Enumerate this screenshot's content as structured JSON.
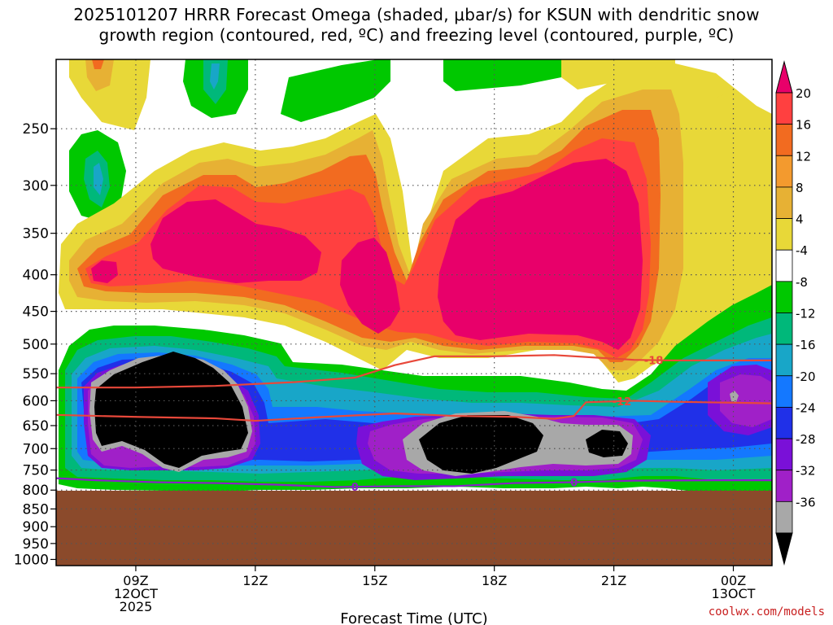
{
  "title": {
    "line1": "2025101207 HRRR Forecast Omega (shaded, μbar/s) for KSUN with dendritic snow",
    "line2": "growth region (contoured, red, ºC) and freezing level (contoured, purple, ºC)"
  },
  "credit": "coolwx.com/models",
  "chart_data": {
    "type": "heatmap",
    "xlabel": "Forecast Time (UTC)",
    "ylabel": "",
    "x_ticks": [
      {
        "t": 9,
        "lines": [
          "09Z",
          "12OCT",
          "2025"
        ]
      },
      {
        "t": 12,
        "lines": [
          "12Z"
        ]
      },
      {
        "t": 15,
        "lines": [
          "15Z"
        ]
      },
      {
        "t": 18,
        "lines": [
          "18Z"
        ]
      },
      {
        "t": 21,
        "lines": [
          "21Z"
        ]
      },
      {
        "t": 24,
        "lines": [
          "00Z",
          "13OCT"
        ]
      }
    ],
    "x_range_hours": [
      7.0,
      24.97
    ],
    "y_ticks": [
      250,
      300,
      350,
      400,
      450,
      500,
      550,
      600,
      650,
      700,
      750,
      800,
      850,
      900,
      950,
      1000
    ],
    "y_range_hPa": [
      200,
      1020
    ],
    "ground_level_hPa": 828,
    "grid": true,
    "colorbar": {
      "labels": [
        "20",
        "16",
        "12",
        "8",
        "4",
        "-4",
        "-8",
        "-12",
        "-16",
        "-20",
        "-24",
        "-28",
        "-32",
        "-36"
      ],
      "colors": [
        "#e8006a",
        "#ff4040",
        "#f26b20",
        "#f39a2e",
        "#e7b134",
        "#e8d838",
        "#ffffff",
        "#00c800",
        "#00b87a",
        "#18a6c8",
        "#1478ff",
        "#2030e8",
        "#7a10d8",
        "#a020c8",
        "#a8a8a8",
        "#000000"
      ],
      "units": "μbar/s"
    },
    "contours": [
      {
        "name": "-18",
        "color": "#e8483a",
        "label": "-18",
        "points": [
          [
            7.0,
            575
          ],
          [
            9.0,
            575
          ],
          [
            11.0,
            572
          ],
          [
            13.0,
            565
          ],
          [
            14.5,
            557
          ],
          [
            15.5,
            535
          ],
          [
            16.5,
            520
          ],
          [
            18.0,
            520
          ],
          [
            19.5,
            518
          ],
          [
            20.5,
            522
          ],
          [
            21.5,
            526
          ],
          [
            22.5,
            527
          ],
          [
            24.97,
            527
          ]
        ]
      },
      {
        "name": "-12",
        "color": "#e8483a",
        "label": "-12",
        "points": [
          [
            7.0,
            628
          ],
          [
            9.0,
            632
          ],
          [
            11.0,
            635
          ],
          [
            12.0,
            640
          ],
          [
            13.5,
            633
          ],
          [
            15.5,
            625
          ],
          [
            17.0,
            630
          ],
          [
            18.5,
            632
          ],
          [
            19.5,
            636
          ],
          [
            20.0,
            630
          ],
          [
            20.3,
            603
          ],
          [
            21.5,
            600
          ],
          [
            22.5,
            602
          ],
          [
            24.97,
            605
          ]
        ]
      },
      {
        "name": "0",
        "color": "#8a20c8",
        "label": "0",
        "points": [
          [
            7.0,
            770
          ],
          [
            8.0,
            775
          ],
          [
            9.5,
            780
          ],
          [
            11.0,
            782
          ],
          [
            12.5,
            786
          ],
          [
            14.0,
            792
          ],
          [
            15.5,
            790
          ],
          [
            17.0,
            790
          ],
          [
            18.5,
            782
          ],
          [
            20.0,
            780
          ],
          [
            21.5,
            776
          ],
          [
            23.5,
            775
          ],
          [
            24.97,
            775
          ]
        ]
      }
    ]
  }
}
